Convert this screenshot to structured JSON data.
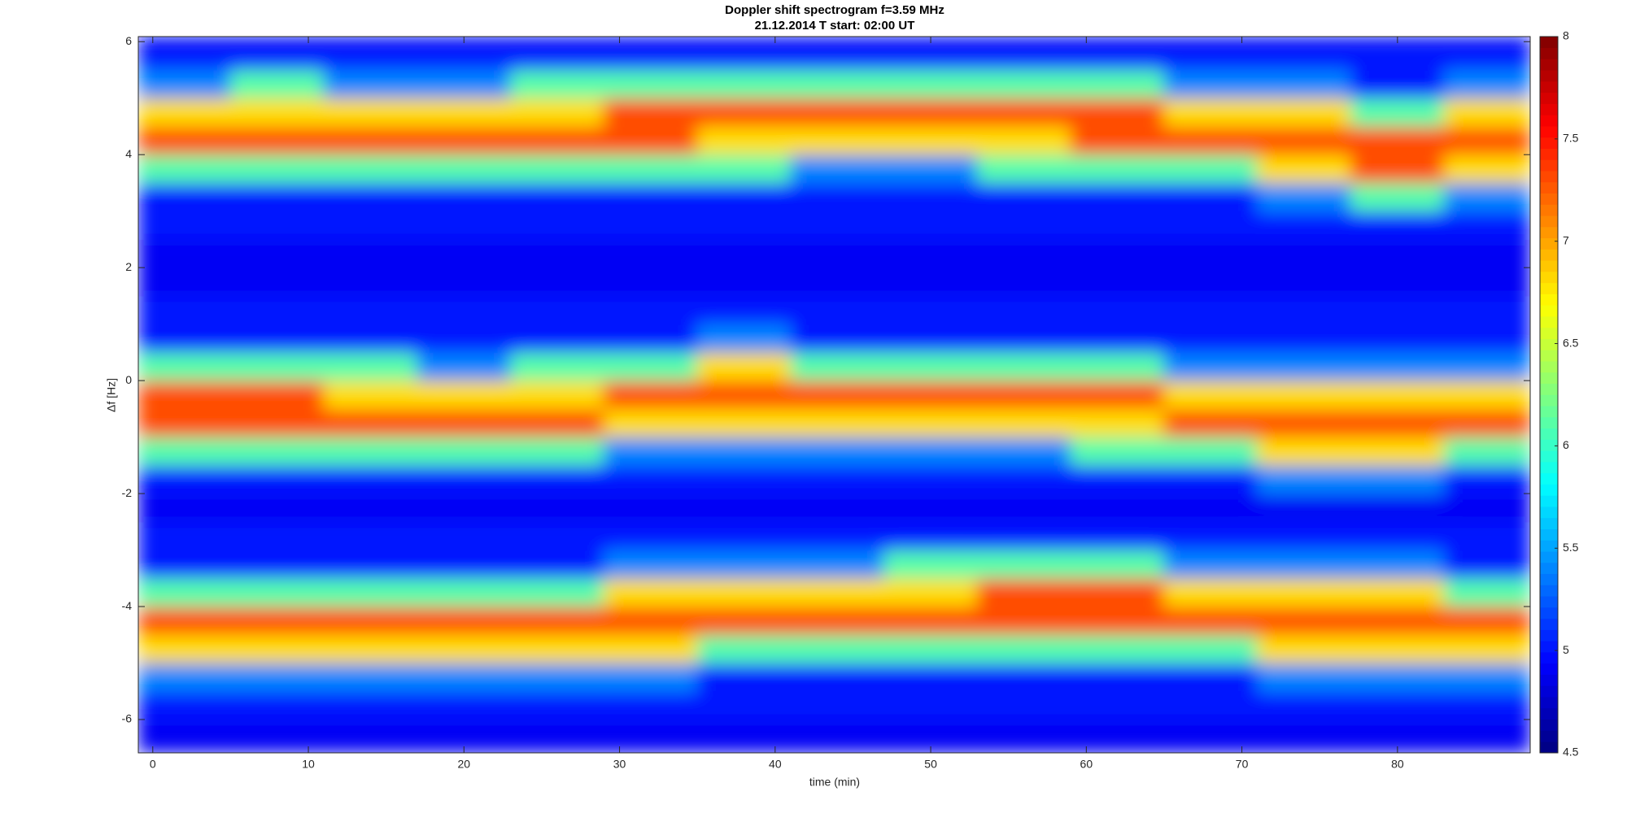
{
  "chart_data": {
    "type": "heatmap",
    "title": "Doppler shift spectrogram f=3.59 MHz",
    "subtitle": "21.12.2014    T start: 02:00 UT",
    "xlabel": "time (min)",
    "ylabel": "Δf [Hz]",
    "xlim": [
      -0.93,
      88.53
    ],
    "ylim": [
      -6.59,
      6.09
    ],
    "xticks": [
      0,
      10,
      20,
      30,
      40,
      50,
      60,
      70,
      80
    ],
    "yticks": [
      -6,
      -4,
      -2,
      0,
      2,
      4,
      6
    ],
    "colormap": "jet",
    "clim": [
      4.5,
      8
    ],
    "cticks": [
      4.5,
      5,
      5.5,
      6,
      6.5,
      7,
      7.5,
      8
    ],
    "xbins": [
      -0.93,
      5,
      11,
      17,
      23,
      29,
      35,
      41,
      47,
      53,
      59,
      65,
      71,
      77,
      83,
      88.53
    ],
    "ybins": [
      -6.59,
      -6,
      -5.5,
      -5,
      -4.5,
      -4,
      -3.5,
      -3,
      -2.5,
      -2,
      -1.5,
      -1,
      -0.5,
      0,
      0.5,
      1,
      1.5,
      2,
      2.5,
      3,
      3.5,
      4,
      4.5,
      5,
      5.5,
      6,
      6.09
    ],
    "z": [
      [
        4.9,
        4.9,
        4.9,
        4.9,
        4.9,
        4.9,
        4.9,
        4.9,
        4.9,
        4.9,
        4.9,
        4.9,
        4.9,
        4.9,
        4.9
      ],
      [
        5.0,
        5.0,
        5.0,
        5.0,
        5.0,
        5.0,
        5.0,
        5.0,
        5.0,
        5.0,
        5.0,
        5.0,
        5.0,
        5.0,
        5.0
      ],
      [
        5.4,
        5.4,
        5.4,
        5.4,
        5.4,
        5.4,
        5.0,
        5.0,
        5.0,
        5.0,
        5.0,
        5.0,
        5.4,
        5.4,
        5.4
      ],
      [
        6.8,
        6.8,
        6.8,
        6.8,
        6.8,
        6.8,
        6.1,
        6.1,
        6.1,
        6.1,
        6.1,
        6.1,
        6.8,
        6.8,
        6.8
      ],
      [
        7.3,
        7.3,
        7.3,
        7.3,
        7.3,
        7.3,
        7.3,
        7.3,
        7.3,
        7.3,
        7.3,
        7.3,
        7.3,
        7.3,
        7.3
      ],
      [
        6.1,
        6.1,
        6.1,
        6.1,
        6.1,
        6.8,
        6.8,
        6.8,
        6.8,
        7.3,
        7.3,
        6.8,
        6.8,
        6.8,
        6.1
      ],
      [
        5.0,
        5.0,
        5.0,
        5.0,
        5.0,
        5.4,
        5.4,
        5.4,
        6.1,
        6.1,
        6.1,
        5.4,
        5.4,
        5.4,
        5.0
      ],
      [
        5.0,
        5.0,
        5.0,
        5.0,
        5.0,
        5.0,
        5.0,
        5.0,
        5.0,
        5.0,
        5.0,
        5.0,
        5.0,
        5.0,
        5.0
      ],
      [
        4.9,
        4.9,
        4.9,
        4.9,
        4.9,
        4.9,
        4.9,
        4.9,
        4.9,
        4.9,
        4.9,
        4.9,
        4.9,
        4.9,
        4.9
      ],
      [
        5.0,
        5.0,
        5.0,
        5.0,
        5.0,
        5.0,
        5.0,
        5.0,
        5.0,
        5.0,
        5.0,
        5.0,
        5.4,
        5.4,
        5.0
      ],
      [
        6.1,
        6.1,
        6.1,
        6.1,
        6.1,
        5.4,
        5.4,
        5.4,
        5.4,
        5.4,
        6.1,
        6.1,
        6.8,
        6.8,
        6.1
      ],
      [
        7.3,
        7.3,
        7.3,
        7.3,
        7.3,
        6.8,
        6.8,
        6.8,
        6.8,
        6.8,
        6.8,
        7.3,
        7.3,
        7.3,
        7.3
      ],
      [
        7.3,
        7.3,
        6.8,
        6.8,
        6.8,
        7.3,
        7.3,
        7.3,
        7.3,
        7.3,
        7.3,
        6.8,
        6.8,
        6.8,
        6.8
      ],
      [
        6.1,
        6.1,
        6.1,
        5.4,
        6.1,
        6.1,
        6.8,
        6.1,
        6.1,
        6.1,
        6.1,
        5.4,
        5.4,
        5.4,
        5.4
      ],
      [
        5.0,
        5.0,
        5.0,
        5.0,
        5.0,
        5.0,
        5.4,
        5.0,
        5.0,
        5.0,
        5.0,
        5.0,
        5.0,
        5.0,
        5.0
      ],
      [
        5.0,
        5.0,
        5.0,
        5.0,
        5.0,
        5.0,
        5.0,
        5.0,
        5.0,
        5.0,
        5.0,
        5.0,
        5.0,
        5.0,
        5.0
      ],
      [
        4.9,
        4.9,
        4.9,
        4.9,
        4.9,
        4.9,
        4.9,
        4.9,
        4.9,
        4.9,
        4.9,
        4.9,
        4.9,
        4.9,
        4.9
      ],
      [
        4.9,
        4.9,
        4.9,
        4.9,
        4.9,
        4.9,
        4.9,
        4.9,
        4.9,
        4.9,
        4.9,
        4.9,
        4.9,
        4.9,
        4.9
      ],
      [
        5.0,
        5.0,
        5.0,
        5.0,
        5.0,
        5.0,
        5.0,
        5.0,
        5.0,
        5.0,
        5.0,
        5.0,
        5.0,
        5.0,
        5.0
      ],
      [
        5.0,
        5.0,
        5.0,
        5.0,
        5.0,
        5.0,
        5.0,
        5.0,
        5.0,
        5.0,
        5.0,
        5.0,
        5.4,
        6.1,
        5.4
      ],
      [
        6.1,
        6.1,
        6.1,
        6.1,
        6.1,
        6.1,
        6.1,
        5.4,
        5.4,
        6.1,
        6.1,
        6.1,
        6.8,
        7.3,
        6.8
      ],
      [
        7.3,
        7.3,
        7.3,
        7.3,
        7.3,
        7.3,
        6.8,
        6.8,
        6.8,
        6.8,
        7.3,
        7.3,
        7.3,
        7.3,
        7.3
      ],
      [
        6.8,
        6.8,
        6.8,
        6.8,
        6.8,
        7.3,
        7.3,
        7.3,
        7.3,
        7.3,
        7.3,
        6.8,
        6.8,
        6.1,
        6.8
      ],
      [
        5.4,
        6.1,
        5.4,
        5.4,
        6.1,
        6.1,
        6.1,
        6.1,
        6.1,
        6.1,
        6.1,
        5.4,
        5.4,
        5.0,
        5.4
      ],
      [
        5.0,
        5.0,
        5.0,
        5.0,
        5.0,
        5.0,
        5.0,
        5.0,
        5.0,
        5.0,
        5.0,
        5.0,
        5.0,
        5.0,
        5.0
      ],
      [
        4.9,
        4.9,
        4.9,
        4.9,
        4.9,
        4.9,
        4.9,
        4.9,
        4.9,
        4.9,
        4.9,
        4.9,
        4.9,
        4.9,
        4.9
      ]
    ]
  }
}
